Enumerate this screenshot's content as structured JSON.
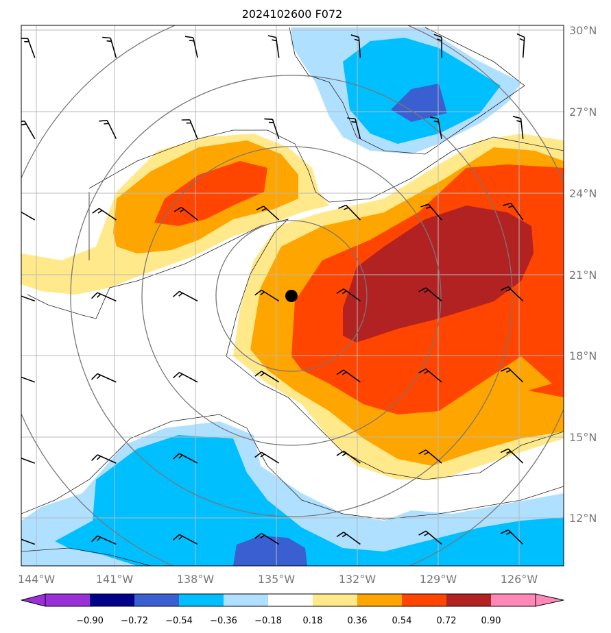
{
  "chart_data": {
    "type": "contour_map",
    "title": "2024102600 F072",
    "x_axis": {
      "range_deg": [
        -144.5,
        -124.5
      ],
      "ticks": [
        "144°W",
        "141°W",
        "138°W",
        "135°W",
        "132°W",
        "129°W",
        "126°W"
      ],
      "tick_values": [
        -144,
        -141,
        -138,
        -135,
        -132,
        -129,
        -126
      ]
    },
    "y_axis": {
      "range_deg": [
        10.2,
        30.2
      ],
      "ticks": [
        "12°N",
        "15°N",
        "18°N",
        "21°N",
        "24°N",
        "27°N",
        "30°N"
      ],
      "tick_values": [
        12,
        15,
        18,
        21,
        24,
        27,
        30
      ]
    },
    "grid": true,
    "center_marker": {
      "lon": -134.5,
      "lat": 20.4
    },
    "range_rings_deg": [
      3,
      6,
      8
    ],
    "colorbar": {
      "location": "bottom",
      "levels": [
        "−0.90",
        "−0.72",
        "−0.54",
        "−0.36",
        "−0.18",
        "0.18",
        "0.36",
        "0.54",
        "0.72",
        "0.90"
      ],
      "colors": [
        "#9b30d9",
        "#00008b",
        "#3a5fd0",
        "#00bfff",
        "#b0e0ff",
        "#ffffff",
        "#ffe98a",
        "#ffa500",
        "#ff4500",
        "#b22222",
        "#ff88b8"
      ]
    },
    "wind_barbs_lon": [
      -144,
      -141,
      -138,
      -135,
      -132,
      -129,
      -126
    ],
    "wind_barbs_lat": [
      11,
      14,
      17,
      20,
      23,
      26,
      29
    ]
  }
}
